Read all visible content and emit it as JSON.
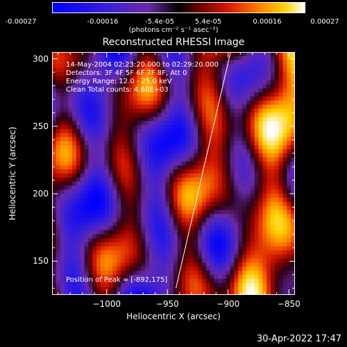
{
  "colorbar": {
    "ticks": [
      "-0.00027",
      "-0.00016",
      "-5.4e-05",
      "5.4e-05",
      "0.00016",
      "0.00027"
    ],
    "units": "(photons cm⁻² s⁻¹ asec⁻²)"
  },
  "chart_data": {
    "type": "heatmap",
    "title": "Reconstructed RHESSI Image",
    "xlabel": "Heliocentric X (arcsec)",
    "ylabel": "Heliocentric Y (arcsec)",
    "xlim": [
      -1045,
      -845
    ],
    "ylim": [
      125,
      305
    ],
    "x_ticks": [
      -1000,
      -950,
      -900,
      -850
    ],
    "y_ticks": [
      150,
      200,
      250,
      300
    ],
    "x_tick_labels": [
      "−1000",
      "−950",
      "−900",
      "−850"
    ],
    "y_tick_labels": [
      "150",
      "200",
      "250",
      "300"
    ],
    "colorbar_range": [
      -0.00027,
      0.00027
    ],
    "limb_line": [
      [
        -943,
        130
      ],
      [
        -898,
        305
      ]
    ],
    "peak": [
      -892,
      175
    ],
    "annotations": [
      "14-May-2004 02:23:20.000 to 02:29:20.000",
      "Detectors: 3F 4F 5F 6F 7F 8F, Att 0",
      "Energy Range: 12.0 - 25.0 keV",
      "Clean    Total counts: 4.68E+03"
    ],
    "peak_label": "Position of Peak = [-892,175]"
  },
  "timestamp": "30-Apr-2022 17:47"
}
